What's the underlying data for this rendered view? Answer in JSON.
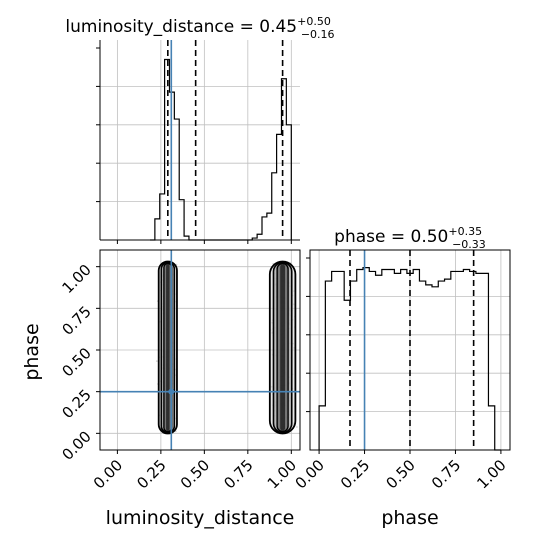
{
  "chart_data": {
    "type": "corner",
    "parameters": [
      "luminosity_distance",
      "phase"
    ],
    "truths": {
      "luminosity_distance": 0.31,
      "phase": 0.25
    },
    "colors": {
      "hist": "#000000",
      "truth": "#4682b4",
      "grid": "#c0c0c0",
      "scatter": "#7f7f7f"
    },
    "grid": true,
    "panels": [
      {
        "id": "luminosity_distance_hist",
        "type": "histogram",
        "title": "luminosity_distance = 0.45",
        "title_sup": "+0.50",
        "title_sub": "−0.16",
        "xlim": [
          -0.1,
          1.05
        ],
        "ylim": [
          0,
          1
        ],
        "bin_edges": [
          0.1875,
          0.2155,
          0.2435,
          0.2715,
          0.2995,
          0.3275,
          0.3555,
          0.3835,
          0.4115,
          0.4395,
          0.4675,
          0.4955,
          0.5235,
          0.5515,
          0.5795,
          0.6075,
          0.6355,
          0.6635,
          0.6915,
          0.7195,
          0.7475,
          0.7755,
          0.8035,
          0.8315,
          0.8595,
          0.8875,
          0.9155,
          0.9435,
          0.9715,
          1.0
        ],
        "counts": [
          0.0,
          0.11,
          0.24,
          0.94,
          0.77,
          0.63,
          0.21,
          0.02,
          0.0,
          0.0,
          0.0,
          0.0,
          0.0,
          0.0,
          0.0,
          0.0,
          0.0,
          0.0,
          0.0,
          0.0,
          0.0,
          0.01,
          0.03,
          0.12,
          0.14,
          0.35,
          0.55,
          0.84,
          0.6
        ],
        "quantiles": [
          0.29,
          0.45,
          0.95
        ]
      },
      {
        "id": "phase_hist",
        "type": "histogram",
        "title": "phase = 0.50",
        "title_sup": "+0.35",
        "title_sub": "−0.33",
        "xlim": [
          -0.05,
          1.05
        ],
        "ylim": [
          0,
          1
        ],
        "bin_edges": [
          0.0,
          0.0345,
          0.069,
          0.1035,
          0.138,
          0.1725,
          0.207,
          0.2415,
          0.276,
          0.3105,
          0.345,
          0.3795,
          0.414,
          0.4485,
          0.483,
          0.5175,
          0.552,
          0.5865,
          0.621,
          0.6555,
          0.69,
          0.7245,
          0.759,
          0.7935,
          0.828,
          0.8625,
          0.897,
          0.9315,
          0.966,
          1.0
        ],
        "counts": [
          0.23,
          0.88,
          0.93,
          0.93,
          0.78,
          0.88,
          0.94,
          0.95,
          0.93,
          0.91,
          0.94,
          0.94,
          0.92,
          0.94,
          0.92,
          0.94,
          0.88,
          0.86,
          0.85,
          0.88,
          0.89,
          0.93,
          0.93,
          0.94,
          0.93,
          0.92,
          0.92,
          0.23,
          0.0
        ],
        "quantiles": [
          0.17,
          0.5,
          0.85
        ]
      },
      {
        "id": "luminosity_distance_vs_phase",
        "type": "2d_density",
        "xlim": [
          -0.1,
          1.05
        ],
        "ylim": [
          -0.1,
          1.1
        ],
        "clusters": [
          {
            "x_center": 0.29,
            "x_halfwidth": 0.05,
            "y_range": [
              0.0,
              1.03
            ]
          },
          {
            "x_center": 0.95,
            "x_halfwidth": 0.07,
            "y_range": [
              0.0,
              1.03
            ]
          }
        ]
      }
    ],
    "axes": {
      "luminosity_distance": {
        "label": "luminosity_distance",
        "ticks": [
          0.0,
          0.25,
          0.5,
          0.75,
          1.0
        ],
        "tick_labels": [
          "0.00",
          "0.25",
          "0.50",
          "0.75",
          "1.00"
        ]
      },
      "phase_y": {
        "label": "phase",
        "ticks": [
          0.0,
          0.25,
          0.5,
          0.75,
          1.0
        ],
        "tick_labels": [
          "0.00",
          "0.25",
          "0.50",
          "0.75",
          "1.00"
        ]
      },
      "phase_x": {
        "label": "phase",
        "ticks": [
          0.0,
          0.25,
          0.5,
          0.75,
          1.0
        ],
        "tick_labels": [
          "0.00",
          "0.25",
          "0.50",
          "0.75",
          "1.00"
        ]
      }
    }
  }
}
